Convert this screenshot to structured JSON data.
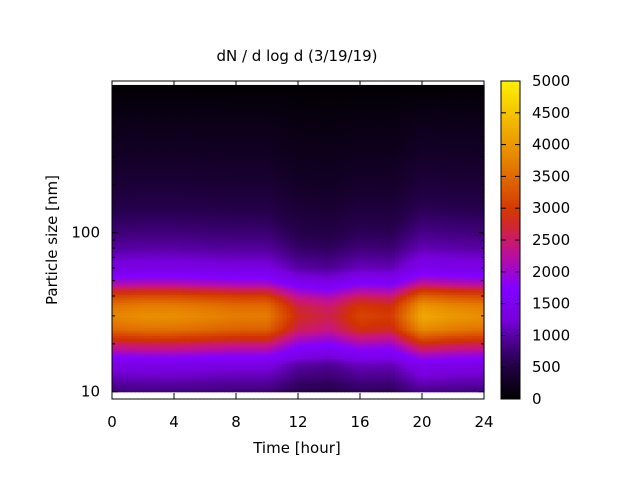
{
  "chart_data": {
    "type": "heatmap",
    "title": "dN / d log d (3/19/19)",
    "xlabel": "Time [hour]",
    "ylabel": "Particle size [nm]",
    "xlim": [
      0,
      24
    ],
    "x_ticks": [
      0,
      4,
      8,
      12,
      16,
      20,
      24
    ],
    "x_tick_labels": [
      "0",
      "4",
      "8",
      "12",
      "16",
      "20",
      "24"
    ],
    "ylim": [
      9,
      900
    ],
    "y_scale": "log",
    "y_tick_labels": [
      {
        "value": 10,
        "label": "10"
      },
      {
        "value": 100,
        "label": "100"
      }
    ],
    "colorbar": {
      "range": [
        0,
        5000
      ],
      "ticks": [
        0,
        500,
        1000,
        1500,
        2000,
        2500,
        3000,
        3500,
        4000,
        4500,
        5000
      ],
      "tick_labels": [
        "0",
        "500",
        "1000",
        "1500",
        "2000",
        "2500",
        "3000",
        "3500",
        "4000",
        "4500",
        "5000"
      ],
      "colormap": "black-purple-red-orange-yellow"
    },
    "size_bins_nm": [
      10,
      15,
      20,
      25,
      30,
      35,
      40,
      50,
      60,
      80,
      100,
      150,
      200,
      300,
      500,
      700,
      850
    ],
    "times_hour": [
      0,
      2,
      4,
      6,
      8,
      10,
      12,
      14,
      16,
      18,
      20,
      22,
      24
    ],
    "concentration_max_by_time": [
      3800,
      3900,
      3900,
      3800,
      3700,
      3700,
      2800,
      2600,
      3100,
      3000,
      4200,
      4000,
      3900
    ],
    "concentration_by_size_at_peak": [
      800,
      1400,
      2600,
      3600,
      3900,
      3700,
      3200,
      2000,
      1400,
      1000,
      800,
      550,
      420,
      300,
      180,
      90,
      20
    ]
  }
}
